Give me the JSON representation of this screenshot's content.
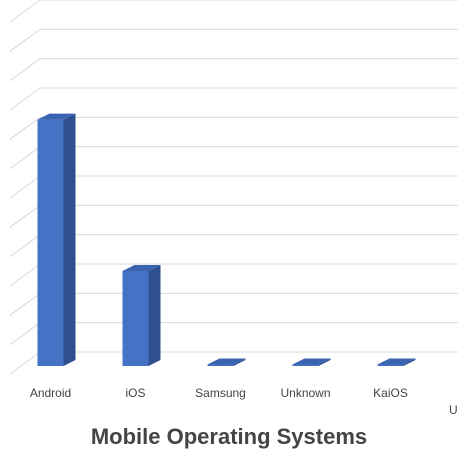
{
  "chart_data": {
    "type": "bar",
    "title": "Mobile Operating Systems",
    "categories": [
      "Android",
      "iOS",
      "Samsung",
      "Unknown",
      "KaiOS"
    ],
    "values": [
      0.7,
      0.27,
      0.003,
      0.002,
      0.002
    ],
    "ylim": [
      0,
      1.0
    ],
    "grid": true,
    "legend": "none",
    "bar_color": "#4472C4",
    "bar_side_color": "#2F4F8F",
    "bar_top_color": "#3A63B0",
    "gridline_color": "#D9D9D9",
    "label_color": "#444444",
    "partial_next_label": "U"
  }
}
